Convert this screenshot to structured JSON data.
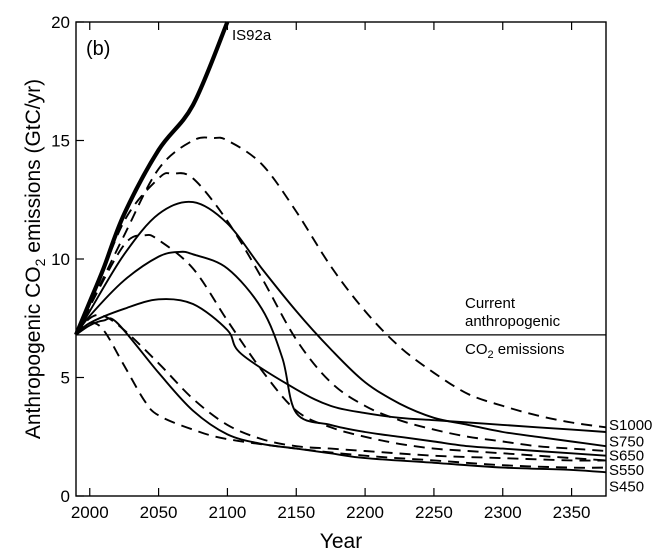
{
  "chart_data": {
    "type": "line",
    "panel_label": "(b)",
    "xlabel": "Year",
    "ylabel_main": "Anthropogenic CO",
    "ylabel_sub": "2",
    "ylabel_rest": " emissions (GtC/yr)",
    "xlim": [
      1990,
      2375
    ],
    "ylim": [
      0,
      20
    ],
    "xticks": [
      2000,
      2050,
      2100,
      2150,
      2200,
      2250,
      2300,
      2350
    ],
    "yticks": [
      0,
      5,
      10,
      15,
      20
    ],
    "grid": false,
    "reference_line": {
      "value": 6.8,
      "label_line1": "Current",
      "label_line2": "anthropogenic",
      "label_line3_main": "CO",
      "label_line3_sub": "2",
      "label_line3_rest": " emissions"
    },
    "series": [
      {
        "name": "IS92a",
        "style": "thick",
        "x": [
          1990,
          2000,
          2010,
          2025,
          2050,
          2075,
          2100
        ],
        "y": [
          6.8,
          8.2,
          9.6,
          11.9,
          14.6,
          16.5,
          20.0
        ]
      },
      {
        "name": "S1000",
        "style": "dashed",
        "x": [
          1990,
          2000,
          2025,
          2050,
          2075,
          2090,
          2100,
          2125,
          2150,
          2175,
          2200,
          2225,
          2250,
          2275,
          2300,
          2325,
          2350,
          2375
        ],
        "y": [
          6.8,
          8.0,
          11.0,
          13.8,
          15.0,
          15.1,
          15.0,
          14.0,
          12.0,
          9.7,
          7.8,
          6.3,
          5.2,
          4.3,
          3.8,
          3.4,
          3.1,
          2.9
        ]
      },
      {
        "name": "S750",
        "style": "solid",
        "x": [
          1990,
          2000,
          2025,
          2050,
          2075,
          2100,
          2125,
          2150,
          2175,
          2200,
          2225,
          2250,
          2275,
          2300,
          2325,
          2350,
          2375
        ],
        "y": [
          6.8,
          7.8,
          10.2,
          11.9,
          12.4,
          11.5,
          9.6,
          7.8,
          6.2,
          4.8,
          3.9,
          3.3,
          3.0,
          2.7,
          2.5,
          2.3,
          2.1
        ]
      },
      {
        "name": "S650",
        "style": "dashed",
        "x": [
          1990,
          2000,
          2025,
          2050,
          2060,
          2075,
          2100,
          2125,
          2150,
          2175,
          2200,
          2225,
          2250,
          2275,
          2300,
          2325,
          2350,
          2375
        ],
        "y": [
          6.8,
          8.0,
          11.6,
          13.4,
          13.6,
          13.4,
          11.6,
          9.2,
          6.6,
          4.8,
          3.8,
          3.2,
          2.8,
          2.5,
          2.3,
          2.1,
          2.0,
          1.9
        ]
      },
      {
        "name": "S550",
        "style": "solid",
        "x": [
          1990,
          2000,
          2025,
          2050,
          2065,
          2075,
          2100,
          2125,
          2140,
          2150,
          2175,
          2200,
          2225,
          2250,
          2275,
          2300,
          2325,
          2350,
          2375
        ],
        "y": [
          6.8,
          7.6,
          9.1,
          10.1,
          10.3,
          10.2,
          9.6,
          7.9,
          5.8,
          3.5,
          3.0,
          2.7,
          2.5,
          2.3,
          2.1,
          2.0,
          1.9,
          1.8,
          1.7
        ]
      },
      {
        "name": "S550",
        "style": "dashed",
        "x": [
          1990,
          2000,
          2025,
          2040,
          2050,
          2075,
          2100,
          2125,
          2150,
          2175,
          2200,
          2225,
          2250,
          2275,
          2300,
          2325,
          2350,
          2375
        ],
        "y": [
          6.8,
          8.0,
          10.6,
          11.0,
          10.8,
          9.6,
          7.4,
          5.3,
          3.6,
          2.9,
          2.5,
          2.2,
          2.0,
          1.9,
          1.8,
          1.7,
          1.6,
          1.5
        ]
      },
      {
        "name": "S450",
        "style": "solid",
        "x": [
          1990,
          2000,
          2025,
          2050,
          2075,
          2100,
          2110,
          2150,
          2175,
          2200,
          2225,
          2250,
          2275,
          2300,
          2325,
          2350,
          2375
        ],
        "y": [
          6.8,
          7.3,
          7.9,
          8.3,
          8.1,
          7.0,
          6.0,
          4.5,
          3.8,
          3.5,
          3.3,
          3.2,
          3.1,
          3.0,
          2.9,
          2.8,
          2.7
        ]
      },
      {
        "name": "S450",
        "style": "dashed",
        "x": [
          1990,
          2000,
          2010,
          2025,
          2050,
          2075,
          2100,
          2125,
          2150,
          2175,
          2200,
          2250,
          2300,
          2350,
          2375
        ],
        "y": [
          6.8,
          7.5,
          7.6,
          7.0,
          5.6,
          4.1,
          3.0,
          2.4,
          2.1,
          2.0,
          1.9,
          1.7,
          1.6,
          1.5,
          1.5
        ]
      },
      {
        "name": "S450",
        "style": "solid",
        "x": [
          1990,
          2000,
          2010,
          2020,
          2050,
          2075,
          2100,
          2125,
          2150,
          2175,
          2200,
          2250,
          2300,
          2350,
          2375
        ],
        "y": [
          6.8,
          7.2,
          7.4,
          7.3,
          5.2,
          3.6,
          2.6,
          2.2,
          2.0,
          1.8,
          1.6,
          1.4,
          1.2,
          1.1,
          1.0
        ]
      },
      {
        "name": "S450",
        "style": "dashed",
        "x": [
          1990,
          2000,
          2010,
          2025,
          2040,
          2050,
          2075,
          2100,
          2150,
          2200,
          2250,
          2300,
          2350,
          2375
        ],
        "y": [
          6.8,
          7.3,
          7.0,
          5.5,
          4.0,
          3.4,
          2.8,
          2.4,
          2.0,
          1.7,
          1.5,
          1.3,
          1.2,
          1.2
        ]
      }
    ],
    "right_labels": [
      "S1000",
      "S750",
      "S650",
      "S550",
      "S450"
    ],
    "right_label_y": [
      3.0,
      2.3,
      1.7,
      1.1,
      0.4
    ],
    "top_label": "IS92a"
  }
}
